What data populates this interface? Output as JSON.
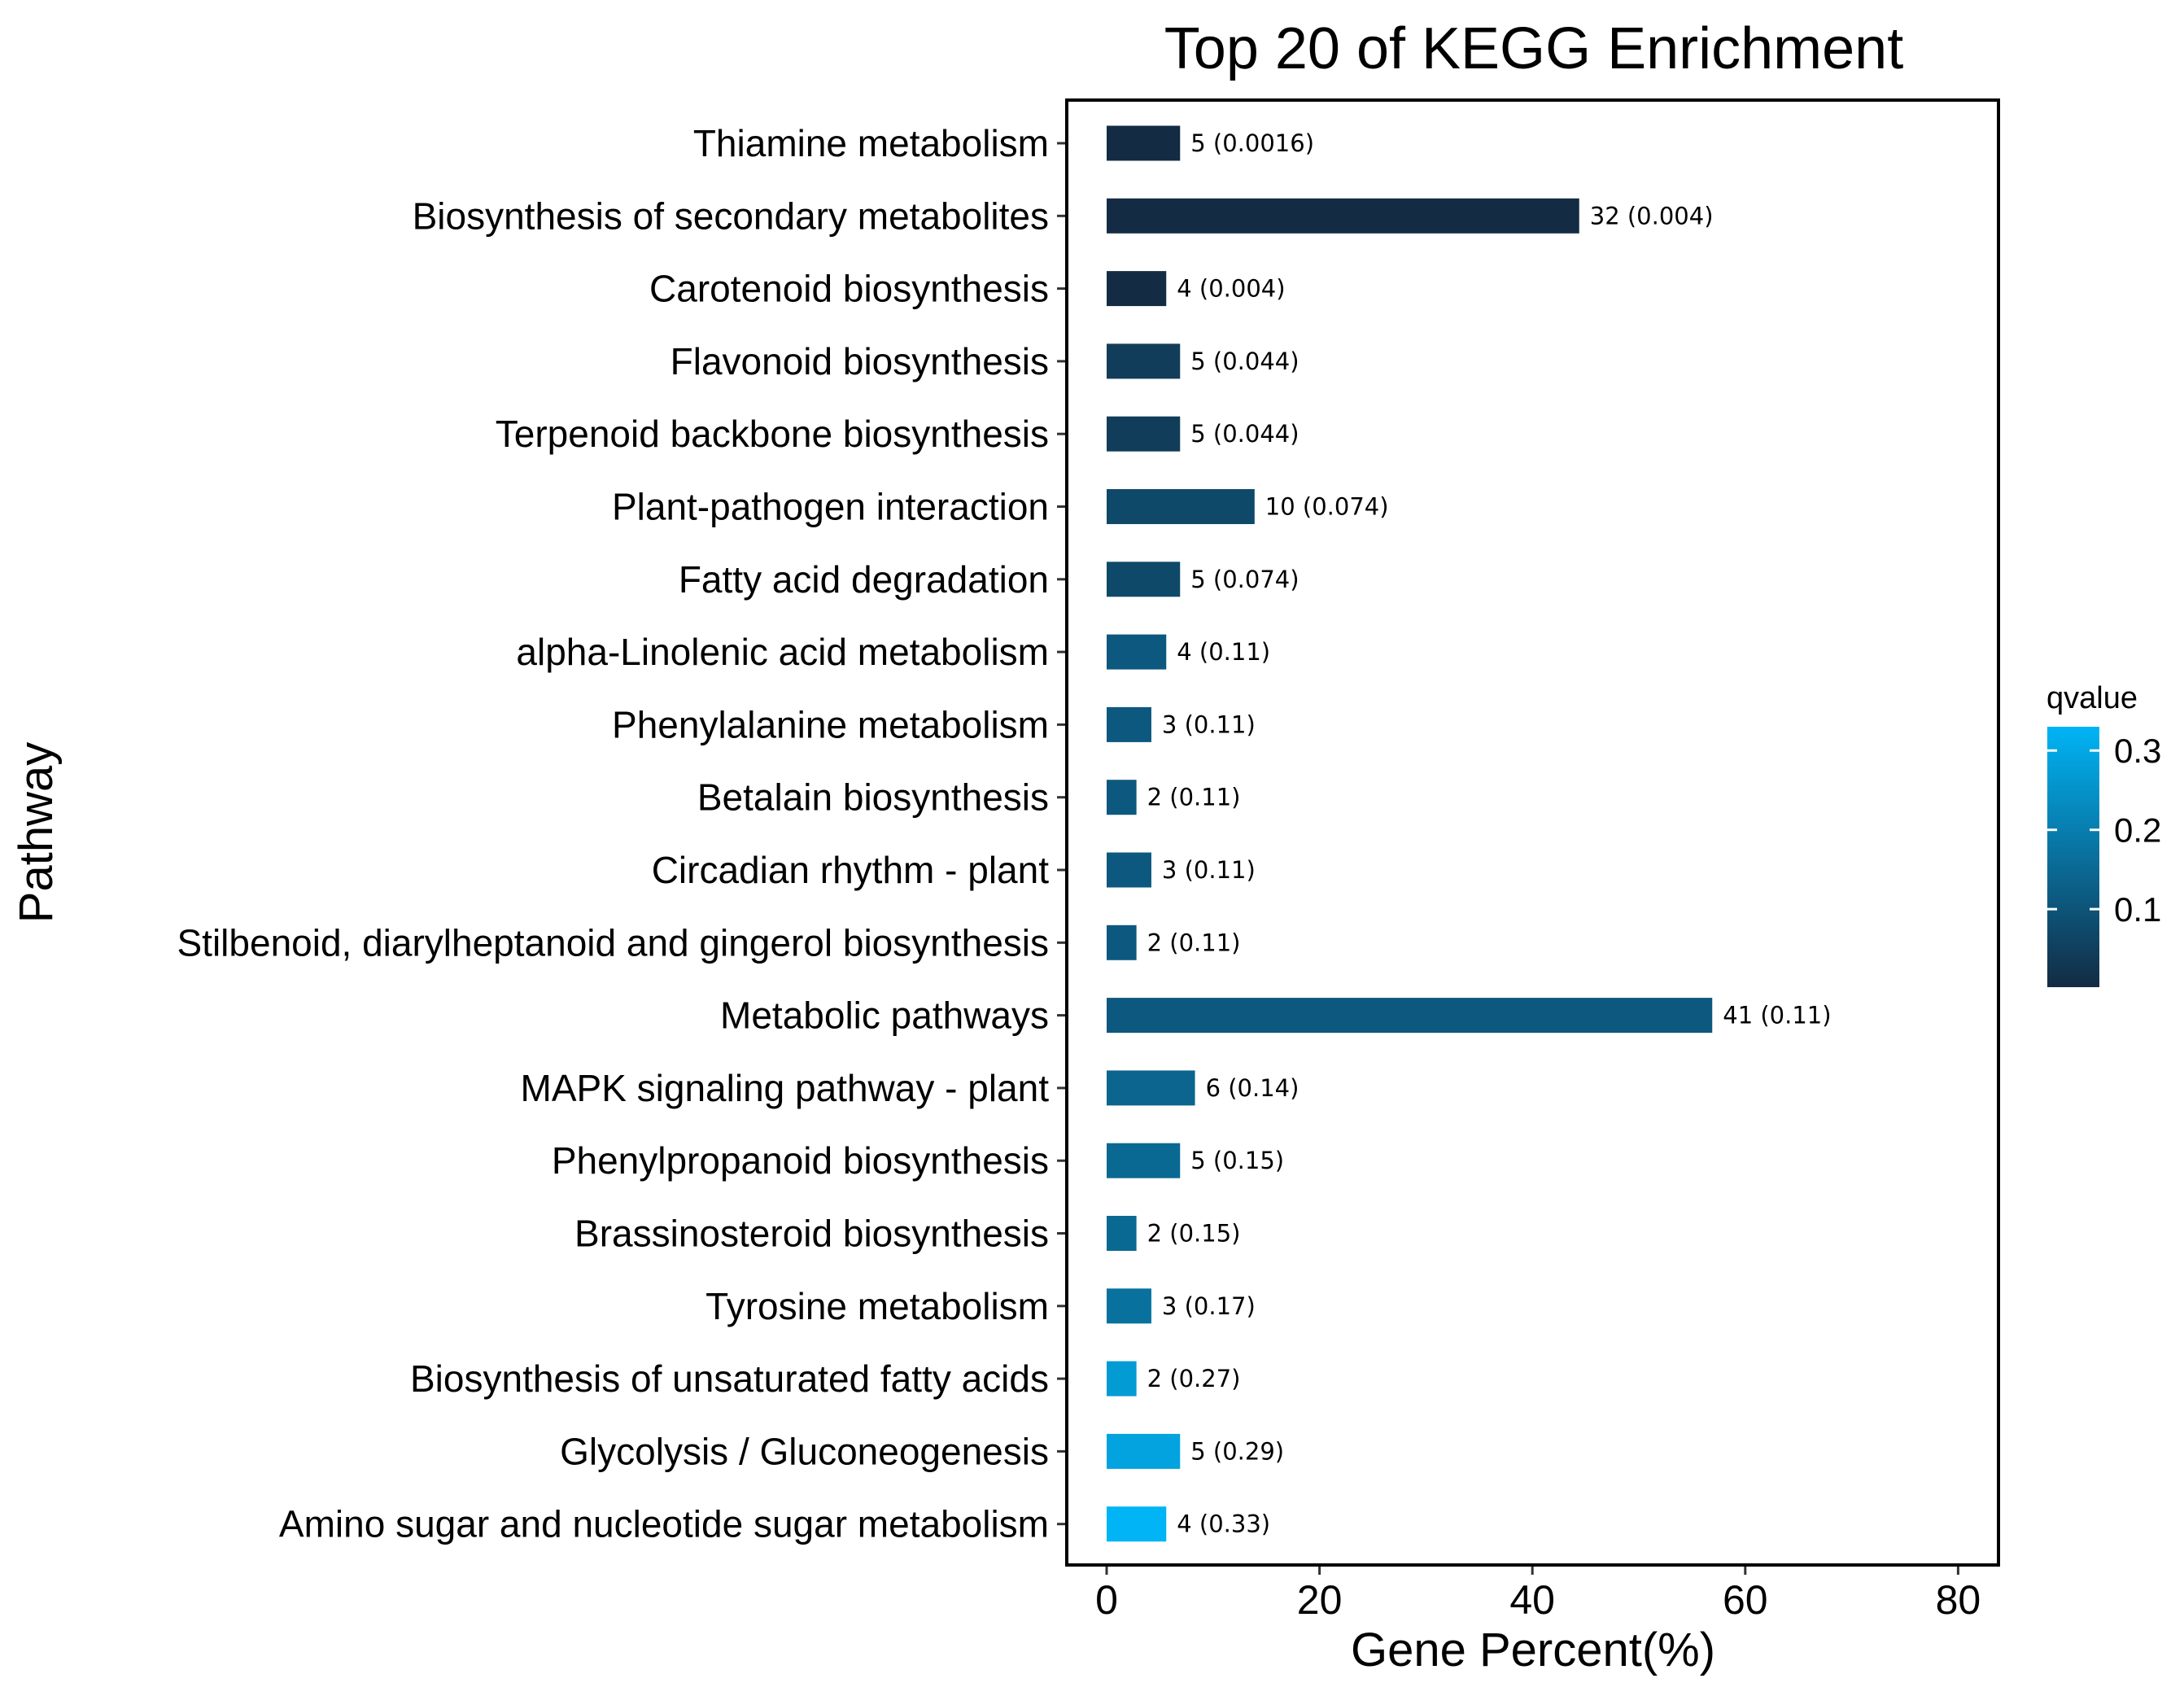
{
  "chart_data": {
    "type": "bar",
    "orientation": "horizontal",
    "title": "Top 20 of KEGG Enrichment",
    "xlabel": "Gene Percent(%)",
    "ylabel": "Pathway",
    "xlim": [
      -3.5,
      84
    ],
    "xticks": [
      0,
      20,
      40,
      60,
      80
    ],
    "grid": false,
    "color_scale": {
      "title": "qvalue",
      "low_color": "#132B43",
      "high_color": "#00B4F5",
      "range": [
        0.0016,
        0.33
      ],
      "ticks": [
        0.1,
        0.2,
        0.3
      ],
      "tick_labels": [
        "0.1",
        "0.2",
        "0.3"
      ]
    },
    "categories": [
      "Thiamine metabolism",
      "Biosynthesis of secondary metabolites",
      "Carotenoid biosynthesis",
      "Flavonoid biosynthesis",
      "Terpenoid backbone biosynthesis",
      "Plant-pathogen interaction",
      "Fatty acid degradation",
      "alpha-Linolenic acid metabolism",
      "Phenylalanine metabolism",
      "Betalain biosynthesis",
      "Circadian rhythm - plant",
      "Stilbenoid, diarylheptanoid and gingerol biosynthesis",
      "Metabolic pathways",
      "MAPK signaling pathway - plant",
      "Phenylpropanoid biosynthesis",
      "Brassinosteroid biosynthesis",
      "Tyrosine metabolism",
      "Biosynthesis of unsaturated fatty acids",
      "Glycolysis / Gluconeogenesis",
      "Amino sugar and nucleotide sugar metabolism"
    ],
    "values": [
      6.9,
      44.4,
      5.6,
      6.9,
      6.9,
      13.9,
      6.9,
      5.6,
      4.2,
      2.8,
      4.2,
      2.8,
      56.9,
      8.3,
      6.9,
      2.8,
      4.2,
      2.8,
      6.9,
      5.6
    ],
    "gene_counts": [
      5,
      32,
      4,
      5,
      5,
      10,
      5,
      4,
      3,
      2,
      3,
      2,
      41,
      6,
      5,
      2,
      3,
      2,
      5,
      4
    ],
    "qvalues": [
      0.0016,
      0.004,
      0.004,
      0.044,
      0.044,
      0.074,
      0.074,
      0.11,
      0.11,
      0.11,
      0.11,
      0.11,
      0.11,
      0.14,
      0.15,
      0.15,
      0.17,
      0.27,
      0.29,
      0.33
    ],
    "bar_labels": [
      "5 (0.0016)",
      "32 (0.004)",
      "4 (0.004)",
      "5 (0.044)",
      "5 (0.044)",
      "10 (0.074)",
      "5 (0.074)",
      "4 (0.11)",
      "3 (0.11)",
      "2 (0.11)",
      "3 (0.11)",
      "2 (0.11)",
      "41 (0.11)",
      "6 (0.14)",
      "5 (0.15)",
      "2 (0.15)",
      "3 (0.17)",
      "2 (0.27)",
      "5 (0.29)",
      "4 (0.33)"
    ]
  }
}
